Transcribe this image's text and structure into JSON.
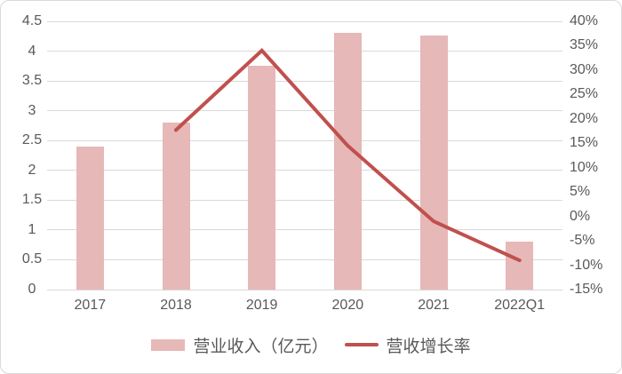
{
  "chart_data": {
    "type": "bar",
    "subtype": "combo-bar-line-dual-axis",
    "title": "",
    "categories": [
      "2017",
      "2018",
      "2019",
      "2020",
      "2021",
      "2022Q1"
    ],
    "series": [
      {
        "name": "营业收入（亿元）",
        "type": "bar",
        "axis": "left",
        "values": [
          2.4,
          2.8,
          3.75,
          4.3,
          4.26,
          0.8
        ]
      },
      {
        "name": "营收增长率",
        "type": "line",
        "axis": "right",
        "unit": "%",
        "values": [
          null,
          17.7,
          34,
          14.5,
          -1,
          -9
        ]
      }
    ],
    "left_axis": {
      "min": 0,
      "max": 4.5,
      "step": 0.5,
      "ticks": [
        "4.5",
        "4",
        "3.5",
        "3",
        "2.5",
        "2",
        "1.5",
        "1",
        "0.5",
        "0"
      ]
    },
    "right_axis": {
      "min": -15,
      "max": 40,
      "step": 5,
      "ticks": [
        "40%",
        "35%",
        "30%",
        "25%",
        "20%",
        "15%",
        "10%",
        "5%",
        "0%",
        "-5%",
        "-10%",
        "-15%"
      ]
    },
    "grid": true,
    "legend_position": "bottom"
  },
  "style": {
    "bar_color": "#E6B8B7",
    "line_color": "#C0504D",
    "grid_color": "#D9D9D9",
    "text_color": "#595959",
    "border_color": "#D9D9D9",
    "background": "#FFFFFF"
  }
}
